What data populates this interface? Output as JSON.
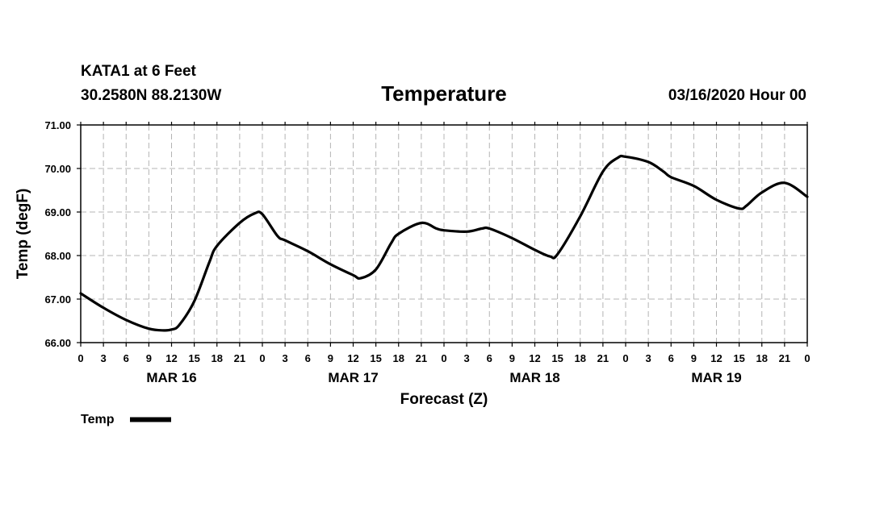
{
  "header": {
    "station": "KATA1 at 6 Feet",
    "coords": "30.2580N 88.2130W",
    "run": "03/16/2020 Hour 00"
  },
  "legend": {
    "label": "Temp"
  },
  "chart_data": {
    "type": "line",
    "title": "Temperature",
    "xlabel": "Forecast (Z)",
    "ylabel": "Temp (degF)",
    "ylim": [
      66.0,
      71.0
    ],
    "xlim": [
      0,
      96
    ],
    "grid": true,
    "legend_position": "bottom-left",
    "y_ticks": [
      "66.00",
      "67.00",
      "68.00",
      "69.00",
      "70.00",
      "71.00"
    ],
    "y_tick_values": [
      66,
      67,
      68,
      69,
      70,
      71
    ],
    "x_tick_labels": [
      "0",
      "3",
      "6",
      "9",
      "12",
      "15",
      "18",
      "21",
      "0",
      "3",
      "6",
      "9",
      "12",
      "15",
      "18",
      "21",
      "0",
      "3",
      "6",
      "9",
      "12",
      "15",
      "18",
      "21",
      "0",
      "3",
      "6",
      "9",
      "12",
      "15",
      "18",
      "21",
      "0"
    ],
    "date_labels": [
      {
        "label": "MAR 16",
        "hour": 12
      },
      {
        "label": "MAR 17",
        "hour": 36
      },
      {
        "label": "MAR 18",
        "hour": 60
      },
      {
        "label": "MAR 19",
        "hour": 84
      }
    ],
    "series": [
      {
        "name": "Temp",
        "color": "#000000",
        "x": [
          0,
          3,
          6,
          9,
          11,
          12,
          13,
          15,
          17,
          18,
          21,
          23,
          24,
          26,
          27,
          30,
          33,
          36,
          37,
          39,
          41,
          42,
          45,
          47,
          48,
          51,
          53,
          54,
          57,
          60,
          62,
          63,
          66,
          69,
          71,
          72,
          75,
          77,
          78,
          81,
          84,
          87,
          88,
          90,
          93,
          96
        ],
        "values": [
          67.13,
          66.8,
          66.52,
          66.32,
          66.28,
          66.3,
          66.4,
          66.95,
          67.85,
          68.22,
          68.75,
          68.97,
          68.95,
          68.45,
          68.35,
          68.1,
          67.8,
          67.55,
          67.48,
          67.68,
          68.28,
          68.5,
          68.75,
          68.62,
          68.58,
          68.55,
          68.62,
          68.62,
          68.4,
          68.13,
          67.98,
          68.03,
          68.9,
          69.93,
          70.25,
          70.27,
          70.15,
          69.93,
          69.8,
          69.6,
          69.28,
          69.08,
          69.15,
          69.45,
          69.67,
          69.35
        ]
      }
    ]
  }
}
